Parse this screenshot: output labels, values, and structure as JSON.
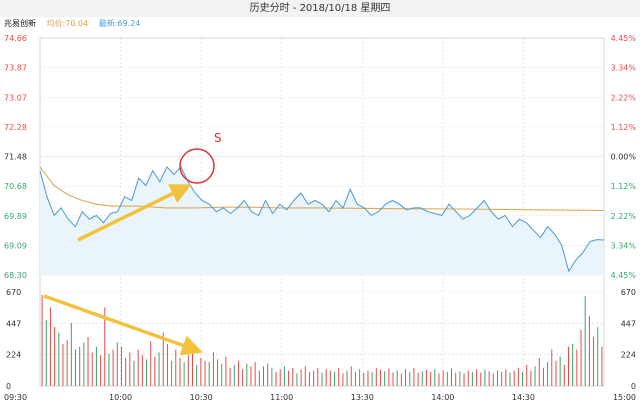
{
  "window": {
    "title": "历史分时 - 2018/10/18 星期四"
  },
  "legend": {
    "name": "兆易创新",
    "avg_label": "均价:70.04",
    "latest_label": "最新:69.24"
  },
  "annotations": {
    "circle_label": "S"
  },
  "colors": {
    "price_line": "#4a9ad4",
    "price_fill": "#eaf4fb",
    "avg_line": "#e0a85a",
    "up": "#e84b4b",
    "down": "#3aa66a",
    "arrow": "#f3c23c",
    "circle": "#e03030",
    "grid": "#d9d9d9"
  },
  "chart_data": {
    "type": "line",
    "title": "",
    "price_axis_ticks": [
      "74.66",
      "73.87",
      "73.07",
      "72.28",
      "71.48",
      "70.68",
      "69.89",
      "69.09",
      "68.30"
    ],
    "pct_axis_ticks": [
      "4.45%",
      "3.34%",
      "2.22%",
      "1.12%",
      "0.00%",
      "1.12%",
      "2.22%",
      "3.34%",
      "4.45%"
    ],
    "volume_axis_ticks": [
      "670",
      "447",
      "224",
      "0"
    ],
    "time_ticks": [
      "09:30",
      "10:00",
      "10:30",
      "11:00",
      "13:30",
      "14:00",
      "14:30",
      "15:00"
    ],
    "ylim": [
      68.3,
      74.66
    ],
    "pre_close": 71.48,
    "volume_ylim": [
      0,
      670
    ],
    "series": [
      {
        "name": "最新",
        "x": [
          0,
          3,
          6,
          9,
          12,
          15,
          18,
          21,
          24,
          27,
          30,
          33,
          36,
          39,
          42,
          45,
          48,
          51,
          54,
          57,
          60,
          63,
          66,
          69,
          72,
          75,
          78,
          81,
          84,
          87,
          90,
          93,
          96,
          99,
          102,
          105,
          108,
          111,
          114,
          117,
          120,
          123,
          126,
          129,
          132,
          135,
          138,
          141,
          144,
          147,
          150,
          153,
          156,
          159,
          162,
          165,
          168,
          171,
          174,
          177,
          180,
          183,
          186,
          189,
          192,
          195,
          198,
          201,
          204,
          207,
          210,
          213,
          216,
          219,
          222,
          225,
          228,
          231,
          234,
          237,
          240
        ],
        "values": [
          71.1,
          70.4,
          69.9,
          70.1,
          69.8,
          69.6,
          70.0,
          69.8,
          69.9,
          69.7,
          69.95,
          70.0,
          70.4,
          70.3,
          70.9,
          70.7,
          71.1,
          70.8,
          71.2,
          71.0,
          71.2,
          70.8,
          70.5,
          70.3,
          70.2,
          70.0,
          70.1,
          69.95,
          70.1,
          70.3,
          70.0,
          69.9,
          70.3,
          69.95,
          70.2,
          70.05,
          70.3,
          70.5,
          70.2,
          70.3,
          70.2,
          70.0,
          70.3,
          70.1,
          70.6,
          70.2,
          70.1,
          69.9,
          70.0,
          70.2,
          70.3,
          70.2,
          70.05,
          70.1,
          70.1,
          70.0,
          69.95,
          69.9,
          70.2,
          70.0,
          69.8,
          69.9,
          70.1,
          70.3,
          70.0,
          69.8,
          69.9,
          69.6,
          69.8,
          69.7,
          69.5,
          69.3,
          69.6,
          69.4,
          69.1,
          68.4,
          68.7,
          68.9,
          69.2,
          69.25,
          69.24
        ]
      },
      {
        "name": "均价",
        "x": [
          0,
          6,
          12,
          18,
          24,
          30,
          42,
          54,
          66,
          78,
          90,
          102,
          114,
          120,
          150,
          180,
          210,
          228,
          240
        ],
        "values": [
          71.2,
          70.7,
          70.45,
          70.3,
          70.2,
          70.15,
          70.15,
          70.1,
          70.1,
          70.12,
          70.12,
          70.1,
          70.1,
          70.1,
          70.08,
          70.07,
          70.05,
          70.04,
          70.03
        ]
      }
    ],
    "volume": [
      650,
      470,
      560,
      420,
      380,
      300,
      330,
      450,
      260,
      280,
      310,
      350,
      240,
      280,
      220,
      560,
      230,
      260,
      310,
      280,
      200,
      240,
      180,
      260,
      220,
      190,
      320,
      210,
      240,
      380,
      300,
      180,
      260,
      200,
      170,
      220,
      260,
      150,
      200,
      180,
      170,
      240,
      190,
      160,
      210,
      130,
      150,
      180,
      120,
      160,
      140,
      170,
      110,
      140,
      160,
      130,
      100,
      120,
      140,
      110,
      130,
      90,
      120,
      140,
      100,
      110,
      130,
      95,
      120,
      110,
      100,
      130,
      90,
      110,
      140,
      100,
      120,
      95,
      110,
      100,
      130,
      115,
      105,
      125,
      95,
      110,
      90,
      120,
      100,
      130,
      95,
      105,
      115,
      100,
      120,
      90,
      110,
      100,
      125,
      95,
      105,
      90,
      110,
      100,
      120,
      95,
      115,
      105,
      90,
      110,
      100,
      120,
      95,
      110,
      130,
      100,
      150,
      110,
      140,
      200,
      130,
      170,
      260,
      180,
      210,
      150,
      280,
      300,
      260,
      400,
      640,
      500,
      350,
      420,
      280
    ]
  }
}
